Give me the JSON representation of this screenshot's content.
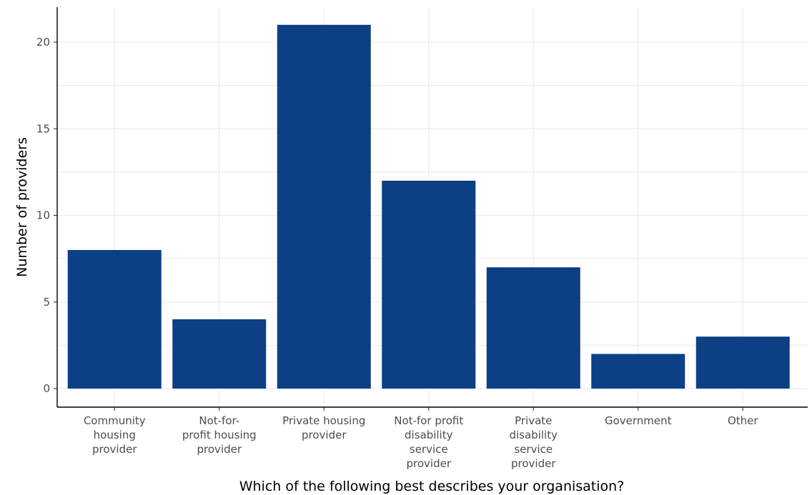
{
  "chart_data": {
    "type": "bar",
    "categories": [
      [
        "Community",
        "housing",
        "provider"
      ],
      [
        "Not-for-",
        "profit housing",
        "provider"
      ],
      [
        "Private housing",
        "provider"
      ],
      [
        "Not-for profit",
        "disability",
        "service",
        "provider"
      ],
      [
        "Private",
        "disability",
        "service",
        "provider"
      ],
      [
        "Government"
      ],
      [
        "Other"
      ]
    ],
    "values": [
      8,
      4,
      21,
      12,
      7,
      2,
      3
    ],
    "title": "",
    "xlabel": "Which of the following best describes your organisation?",
    "ylabel": "Number of providers",
    "ylim": [
      0,
      22
    ],
    "yticks": [
      0,
      5,
      10,
      15,
      20
    ],
    "grid": true,
    "bar_color": "#0d3f85"
  }
}
